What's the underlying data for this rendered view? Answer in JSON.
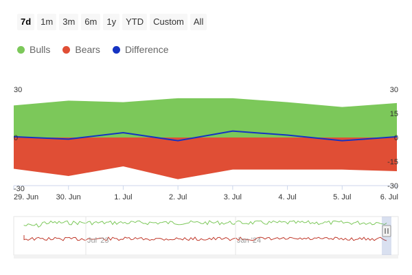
{
  "range_selector": {
    "buttons": [
      "7d",
      "1m",
      "3m",
      "6m",
      "1y",
      "YTD",
      "Custom",
      "All"
    ],
    "active": "7d"
  },
  "legend": {
    "items": [
      {
        "label": "Bulls",
        "color": "#7cc85a"
      },
      {
        "label": "Bears",
        "color": "#e04e35"
      },
      {
        "label": "Difference",
        "color": "#1533c2"
      }
    ]
  },
  "chart_data": {
    "type": "area",
    "categories": [
      "29. Jun",
      "30. Jun",
      "1. Jul",
      "2. Jul",
      "3. Jul",
      "4. Jul",
      "5. Jul",
      "6. Jul"
    ],
    "series": [
      {
        "name": "Bulls",
        "type": "area",
        "color": "#7cc85a",
        "values": [
          20,
          23,
          22,
          24.5,
          24.5,
          22,
          19,
          21.5
        ]
      },
      {
        "name": "Bears",
        "type": "area",
        "color": "#e04e35",
        "values": [
          -19.5,
          -24,
          -18,
          -26,
          -20,
          -20,
          -20,
          -21
        ]
      },
      {
        "name": "Difference",
        "type": "line",
        "color": "#1533c2",
        "values": [
          0.5,
          -1,
          3,
          -2,
          4,
          1.5,
          -2,
          0.5
        ]
      }
    ],
    "y_left": {
      "ticks": [
        30,
        0,
        -30
      ],
      "range": [
        -30,
        30
      ]
    },
    "y_right": {
      "ticks": [
        30,
        15,
        0,
        -15,
        -30
      ],
      "range": [
        -30,
        30
      ]
    },
    "navigator": {
      "labels": [
        "Jul '23",
        "Jan '24"
      ]
    }
  }
}
